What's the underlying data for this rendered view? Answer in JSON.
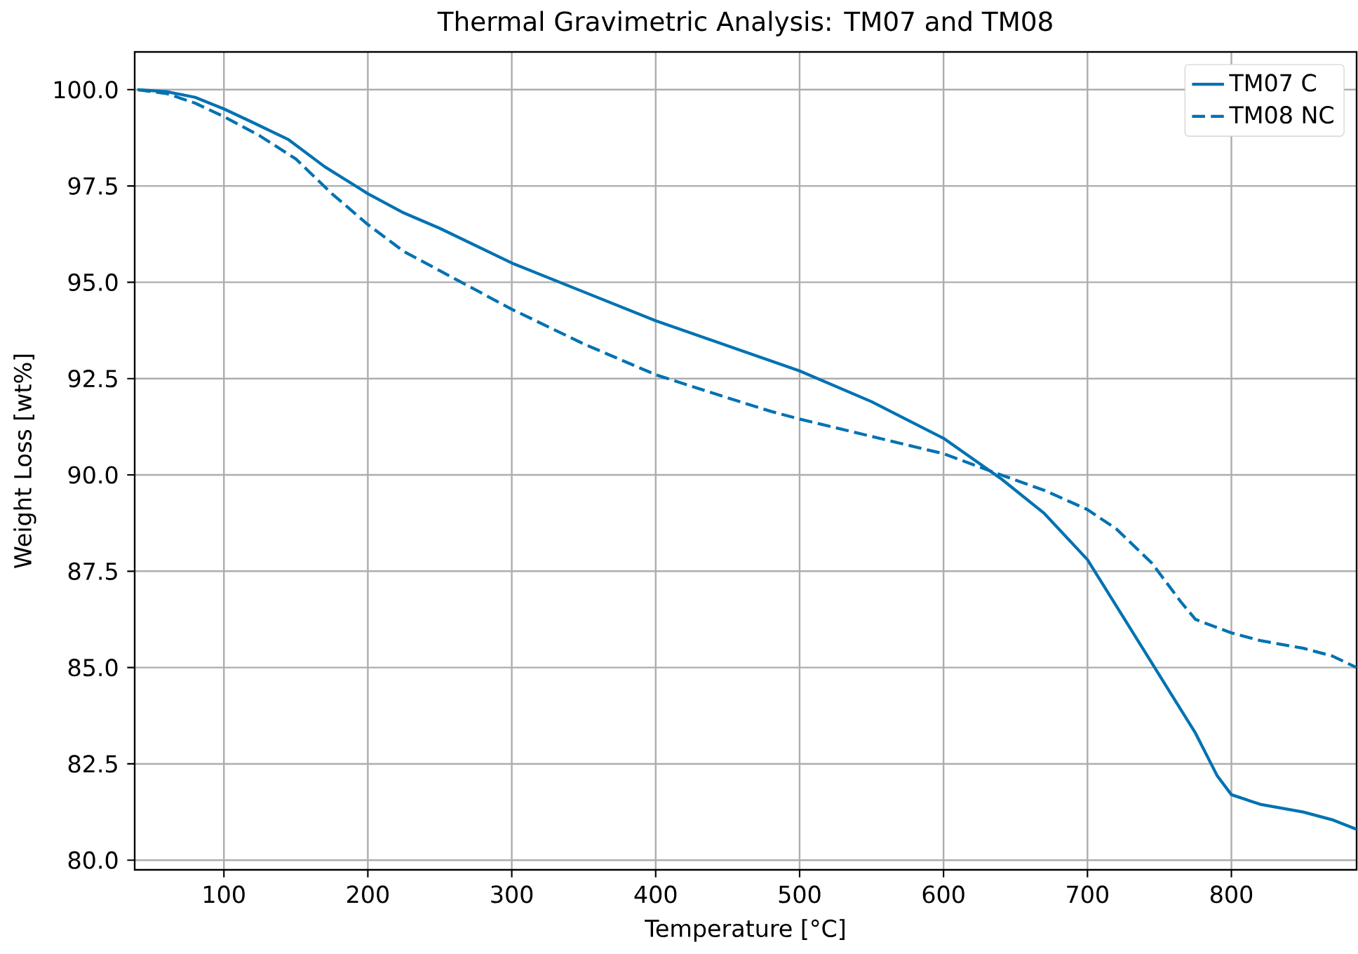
{
  "chart_data": {
    "type": "line",
    "title": "Thermal Gravimetric Analysis: TM07 and TM08",
    "xlabel": "Temperature [°C]",
    "ylabel": "Weight Loss [wt%]",
    "xlim": [
      38,
      887
    ],
    "ylim": [
      79.75,
      100.98
    ],
    "xticks": [
      100,
      200,
      300,
      400,
      500,
      600,
      700,
      800
    ],
    "yticks": [
      {
        "value": 80,
        "label": "80.0"
      },
      {
        "value": 82.5,
        "label": "82.5"
      },
      {
        "value": 85,
        "label": "85.0"
      },
      {
        "value": 87.5,
        "label": "87.5"
      },
      {
        "value": 90,
        "label": "90.0"
      },
      {
        "value": 92.5,
        "label": "92.5"
      },
      {
        "value": 95,
        "label": "95.0"
      },
      {
        "value": 97.5,
        "label": "97.5"
      },
      {
        "value": 100,
        "label": "100.0"
      }
    ],
    "grid": true,
    "legend": "top right",
    "marker": "none",
    "series": [
      {
        "name": "TM07 C",
        "color": "#0072b2",
        "line_style": "solid",
        "x": [
          40,
          60,
          80,
          100,
          120,
          145,
          170,
          200,
          225,
          250,
          300,
          350,
          400,
          450,
          500,
          550,
          600,
          640,
          670,
          700,
          725,
          750,
          775,
          790,
          800,
          820,
          850,
          870,
          887
        ],
        "values": [
          100,
          99.95,
          99.8,
          99.5,
          99.15,
          98.7,
          98.0,
          97.3,
          96.8,
          96.4,
          95.5,
          94.75,
          94.0,
          93.35,
          92.7,
          91.9,
          90.95,
          89.9,
          89.0,
          87.8,
          86.3,
          84.8,
          83.3,
          82.2,
          81.7,
          81.45,
          81.25,
          81.05,
          80.8
        ]
      },
      {
        "name": "TM08 NC",
        "color": "#0072b2",
        "line_style": "dashed",
        "x": [
          40,
          60,
          80,
          100,
          125,
          150,
          175,
          200,
          225,
          250,
          300,
          350,
          400,
          450,
          480,
          500,
          550,
          600,
          640,
          670,
          700,
          720,
          745,
          765,
          775,
          800,
          820,
          850,
          870,
          887
        ],
        "values": [
          100,
          99.9,
          99.65,
          99.3,
          98.8,
          98.2,
          97.3,
          96.5,
          95.8,
          95.3,
          94.3,
          93.4,
          92.6,
          92.0,
          91.65,
          91.45,
          91.0,
          90.55,
          90.0,
          89.6,
          89.1,
          88.6,
          87.7,
          86.7,
          86.25,
          85.9,
          85.7,
          85.5,
          85.3,
          85.0
        ]
      }
    ]
  }
}
